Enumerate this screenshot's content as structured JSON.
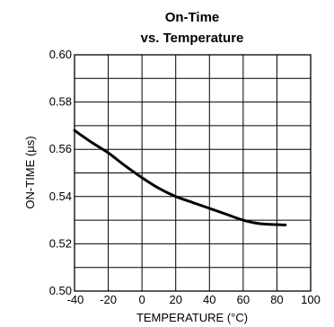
{
  "chart_data": {
    "type": "line",
    "title_line1": "On-Time",
    "title_line2": "vs. Temperature",
    "xlabel": "TEMPERATURE (°C)",
    "ylabel": "ON-TIME (µs)",
    "xlim": [
      -40,
      100
    ],
    "ylim": [
      0.5,
      0.6
    ],
    "x_major_ticks": [
      -40,
      -20,
      0,
      20,
      40,
      60,
      80,
      100
    ],
    "x_tick_labels": [
      "-40",
      "-20",
      "0",
      "20",
      "40",
      "60",
      "80",
      "100"
    ],
    "y_major_ticks": [
      0.5,
      0.52,
      0.54,
      0.56,
      0.58,
      0.6
    ],
    "y_tick_labels": [
      "0.50",
      "0.52",
      "0.54",
      "0.56",
      "0.58",
      "0.60"
    ],
    "grid": true,
    "series": [
      {
        "x": [
          -40,
          -30,
          -20,
          -10,
          0,
          10,
          20,
          30,
          40,
          50,
          60,
          70,
          85
        ],
        "y": [
          0.568,
          0.563,
          0.5585,
          0.553,
          0.548,
          0.5435,
          0.54,
          0.5375,
          0.535,
          0.5325,
          0.53,
          0.5285,
          0.528
        ]
      }
    ]
  }
}
